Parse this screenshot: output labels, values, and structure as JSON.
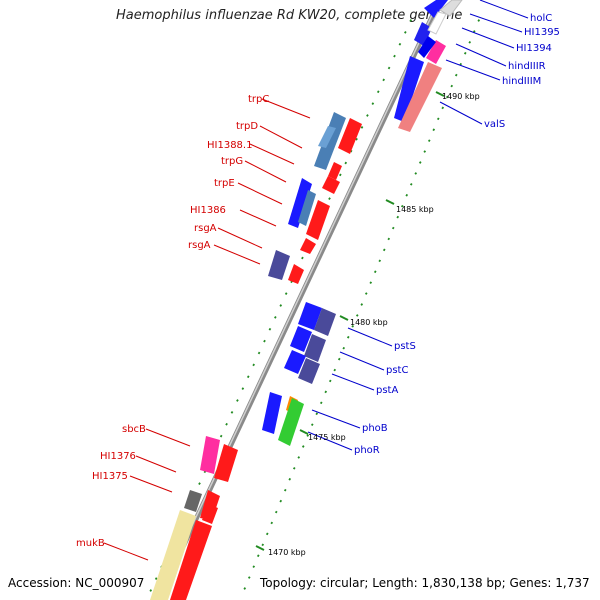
{
  "title": "Haemophilus influenzae Rd KW20, complete genome",
  "accession": "Accession: NC_000907",
  "topology": "Topology: circular; Length: 1,830,138 bp; Genes: 1,737",
  "colors": {
    "backbone": "#999999",
    "label_left": "#d40000",
    "label_right": "#0000cc",
    "tick": "#228b22"
  },
  "kbp_labels": [
    "1490 kbp",
    "1485 kbp",
    "1480 kbp",
    "1475 kbp",
    "1470 kbp"
  ],
  "left_genes": [
    "trpC",
    "trpD",
    "HI1388.1",
    "trpG",
    "trpE",
    "HI1386",
    "rsgA",
    "rsgA",
    "sbcB",
    "HI1376",
    "HI1375",
    "mukB"
  ],
  "right_genes": [
    "holC",
    "HI1395",
    "HI1394",
    "hindIIIR",
    "hindIIIM",
    "valS",
    "pstS",
    "pstC",
    "pstA",
    "phoB",
    "phoR"
  ]
}
